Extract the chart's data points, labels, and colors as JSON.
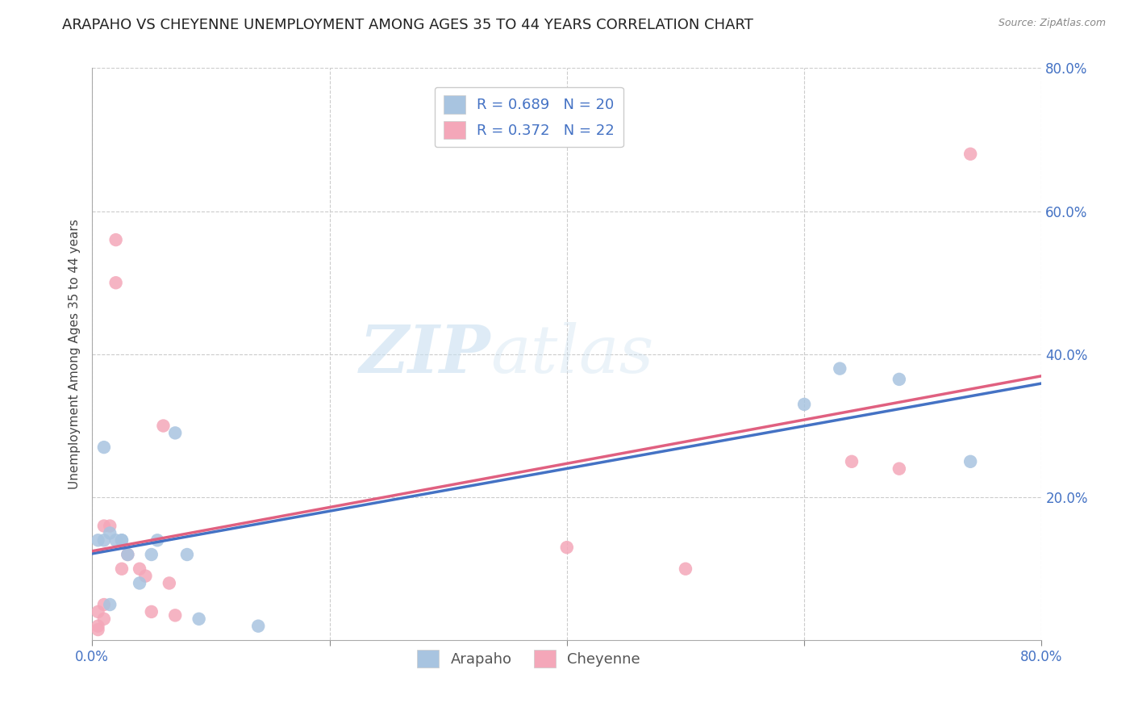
{
  "title": "ARAPAHO VS CHEYENNE UNEMPLOYMENT AMONG AGES 35 TO 44 YEARS CORRELATION CHART",
  "source": "Source: ZipAtlas.com",
  "ylabel": "Unemployment Among Ages 35 to 44 years",
  "xlim": [
    0.0,
    0.8
  ],
  "ylim": [
    0.0,
    0.8
  ],
  "xticks": [
    0.0,
    0.2,
    0.4,
    0.6,
    0.8
  ],
  "yticks": [
    0.2,
    0.4,
    0.6,
    0.8
  ],
  "xticklabels": [
    "0.0%",
    "",
    "",
    "",
    "80.0%"
  ],
  "yticklabels": [
    "20.0%",
    "40.0%",
    "60.0%",
    "80.0%"
  ],
  "arapaho_color": "#a8c4e0",
  "cheyenne_color": "#f4a7b9",
  "arapaho_line_color": "#4472c4",
  "cheyenne_line_color": "#e06080",
  "arapaho_R": 0.689,
  "arapaho_N": 20,
  "cheyenne_R": 0.372,
  "cheyenne_N": 22,
  "legend_R_color": "#4472c4",
  "watermark_zip": "ZIP",
  "watermark_atlas": "atlas",
  "arapaho_x": [
    0.005,
    0.01,
    0.01,
    0.015,
    0.015,
    0.02,
    0.025,
    0.025,
    0.03,
    0.04,
    0.05,
    0.055,
    0.07,
    0.08,
    0.09,
    0.14,
    0.6,
    0.63,
    0.68,
    0.74
  ],
  "arapaho_y": [
    0.14,
    0.14,
    0.27,
    0.05,
    0.15,
    0.14,
    0.14,
    0.14,
    0.12,
    0.08,
    0.12,
    0.14,
    0.29,
    0.12,
    0.03,
    0.02,
    0.33,
    0.38,
    0.365,
    0.25
  ],
  "cheyenne_x": [
    0.005,
    0.005,
    0.005,
    0.01,
    0.01,
    0.01,
    0.015,
    0.02,
    0.02,
    0.025,
    0.03,
    0.04,
    0.045,
    0.05,
    0.06,
    0.065,
    0.07,
    0.4,
    0.5,
    0.64,
    0.68,
    0.74
  ],
  "cheyenne_y": [
    0.04,
    0.02,
    0.015,
    0.16,
    0.05,
    0.03,
    0.16,
    0.56,
    0.5,
    0.1,
    0.12,
    0.1,
    0.09,
    0.04,
    0.3,
    0.08,
    0.035,
    0.13,
    0.1,
    0.25,
    0.24,
    0.68
  ],
  "marker_size": 140,
  "grid_color": "#cccccc",
  "grid_linestyle": "--",
  "background_color": "#ffffff",
  "title_fontsize": 13,
  "axis_label_fontsize": 11,
  "tick_fontsize": 12,
  "legend_fontsize": 13
}
